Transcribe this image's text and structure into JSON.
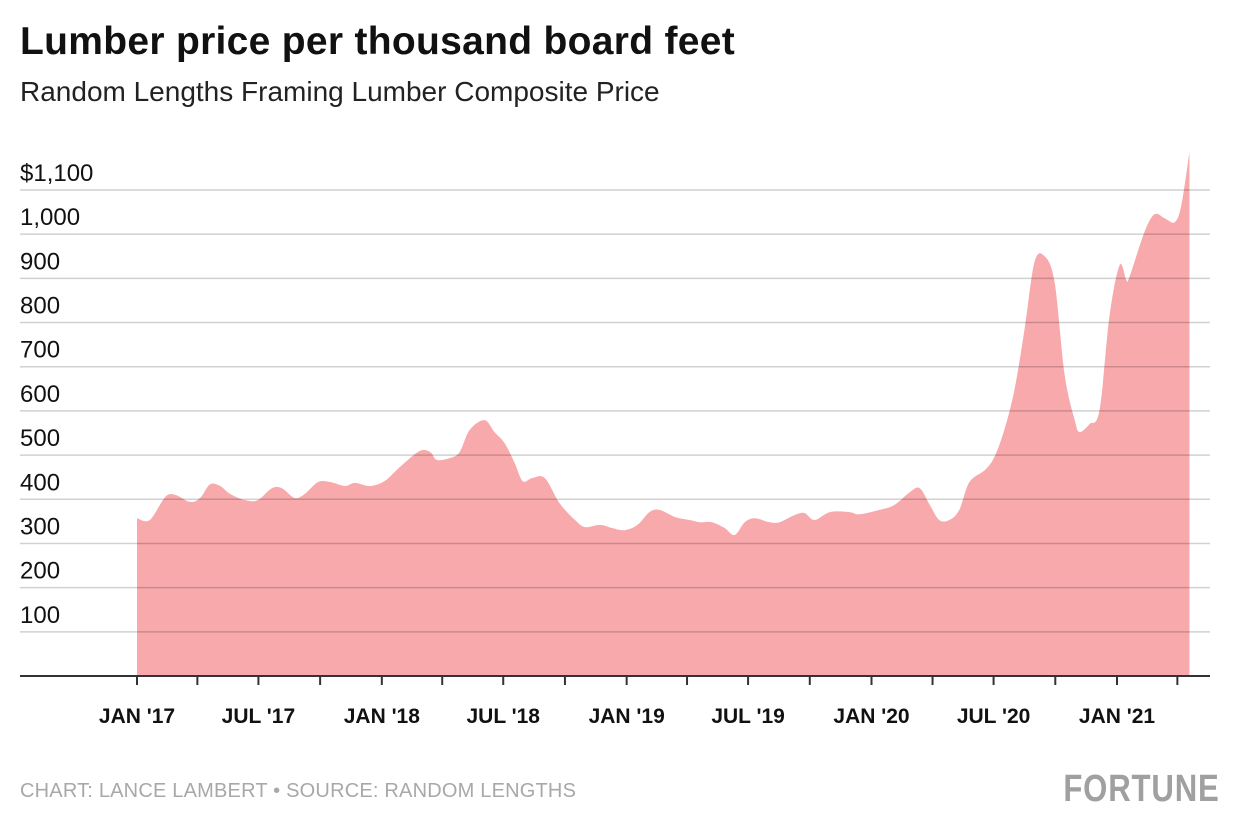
{
  "chart_data": {
    "type": "area",
    "title": "Lumber price per thousand board feet",
    "subtitle": "Random Lengths Framing Lumber Composite Price",
    "xlabel": "",
    "ylabel": "",
    "ylim": [
      0,
      1200
    ],
    "yticks": [
      100,
      200,
      300,
      400,
      500,
      600,
      700,
      800,
      900,
      1000,
      1100
    ],
    "ytick_labels": [
      "100",
      "200",
      "300",
      "400",
      "500",
      "600",
      "700",
      "800",
      "900",
      "1,000",
      "$1,100"
    ],
    "xlim": [
      "2016-12-20",
      "2021-05-31"
    ],
    "xtick_labels": [
      {
        "date": "2017-01-01",
        "label": "JAN '17"
      },
      {
        "date": "2017-07-01",
        "label": "JUL '17"
      },
      {
        "date": "2018-01-01",
        "label": "JAN '18"
      },
      {
        "date": "2018-07-01",
        "label": "JUL '18"
      },
      {
        "date": "2019-01-01",
        "label": "JAN '19"
      },
      {
        "date": "2019-07-01",
        "label": "JUL '19"
      },
      {
        "date": "2020-01-01",
        "label": "JAN '20"
      },
      {
        "date": "2020-07-01",
        "label": "JUL '20"
      },
      {
        "date": "2021-01-01",
        "label": "JAN '21"
      }
    ],
    "grid": true,
    "fill_color": "#f7a9ac",
    "points": [
      [
        "2017-01-01",
        357
      ],
      [
        "2017-01-20",
        353
      ],
      [
        "2017-02-12",
        405
      ],
      [
        "2017-02-27",
        410
      ],
      [
        "2017-03-21",
        394
      ],
      [
        "2017-04-05",
        403
      ],
      [
        "2017-04-20",
        434
      ],
      [
        "2017-05-05",
        430
      ],
      [
        "2017-05-20",
        412
      ],
      [
        "2017-06-11",
        398
      ],
      [
        "2017-06-30",
        398
      ],
      [
        "2017-07-21",
        425
      ],
      [
        "2017-08-05",
        425
      ],
      [
        "2017-08-24",
        403
      ],
      [
        "2017-09-08",
        412
      ],
      [
        "2017-09-28",
        439
      ],
      [
        "2017-10-16",
        439
      ],
      [
        "2017-11-07",
        430
      ],
      [
        "2017-11-22",
        437
      ],
      [
        "2017-12-14",
        430
      ],
      [
        "2018-01-05",
        441
      ],
      [
        "2018-01-28",
        473
      ],
      [
        "2018-02-26",
        509
      ],
      [
        "2018-03-14",
        507
      ],
      [
        "2018-03-24",
        489
      ],
      [
        "2018-04-12",
        493
      ],
      [
        "2018-04-27",
        507
      ],
      [
        "2018-05-12",
        557
      ],
      [
        "2018-06-03",
        579
      ],
      [
        "2018-06-18",
        552
      ],
      [
        "2018-07-03",
        527
      ],
      [
        "2018-07-18",
        482
      ],
      [
        "2018-07-30",
        441
      ],
      [
        "2018-08-13",
        448
      ],
      [
        "2018-09-01",
        448
      ],
      [
        "2018-09-23",
        391
      ],
      [
        "2018-10-16",
        353
      ],
      [
        "2018-10-31",
        337
      ],
      [
        "2018-11-22",
        342
      ],
      [
        "2018-12-10",
        335
      ],
      [
        "2018-12-29",
        330
      ],
      [
        "2019-01-17",
        342
      ],
      [
        "2019-02-04",
        371
      ],
      [
        "2019-02-19",
        376
      ],
      [
        "2019-03-14",
        360
      ],
      [
        "2019-04-05",
        353
      ],
      [
        "2019-04-20",
        348
      ],
      [
        "2019-05-08",
        348
      ],
      [
        "2019-05-27",
        335
      ],
      [
        "2019-06-11",
        319
      ],
      [
        "2019-06-26",
        348
      ],
      [
        "2019-07-11",
        357
      ],
      [
        "2019-08-02",
        348
      ],
      [
        "2019-08-17",
        348
      ],
      [
        "2019-09-08",
        364
      ],
      [
        "2019-09-23",
        369
      ],
      [
        "2019-10-08",
        353
      ],
      [
        "2019-10-31",
        371
      ],
      [
        "2019-11-29",
        371
      ],
      [
        "2019-12-14",
        366
      ],
      [
        "2020-01-13",
        376
      ],
      [
        "2020-02-04",
        387
      ],
      [
        "2020-02-27",
        416
      ],
      [
        "2020-03-13",
        425
      ],
      [
        "2020-03-28",
        387
      ],
      [
        "2020-04-11",
        353
      ],
      [
        "2020-04-26",
        353
      ],
      [
        "2020-05-11",
        376
      ],
      [
        "2020-05-26",
        439
      ],
      [
        "2020-06-18",
        466
      ],
      [
        "2020-07-02",
        495
      ],
      [
        "2020-07-17",
        557
      ],
      [
        "2020-08-01",
        647
      ],
      [
        "2020-08-16",
        783
      ],
      [
        "2020-08-31",
        937
      ],
      [
        "2020-09-15",
        950
      ],
      [
        "2020-09-30",
        891
      ],
      [
        "2020-10-15",
        681
      ],
      [
        "2020-10-30",
        579
      ],
      [
        "2020-11-06",
        552
      ],
      [
        "2020-11-21",
        570
      ],
      [
        "2020-12-06",
        602
      ],
      [
        "2020-12-21",
        817
      ],
      [
        "2021-01-05",
        930
      ],
      [
        "2021-01-15",
        896
      ],
      [
        "2021-01-20",
        905
      ],
      [
        "2021-02-11",
        1005
      ],
      [
        "2021-02-26",
        1045
      ],
      [
        "2021-03-13",
        1036
      ],
      [
        "2021-03-28",
        1027
      ],
      [
        "2021-04-07",
        1066
      ],
      [
        "2021-04-19",
        1186
      ]
    ]
  },
  "footer": {
    "credit": "CHART: LANCE LAMBERT • SOURCE: RANDOM LENGTHS",
    "logo": "FORTUNE"
  }
}
